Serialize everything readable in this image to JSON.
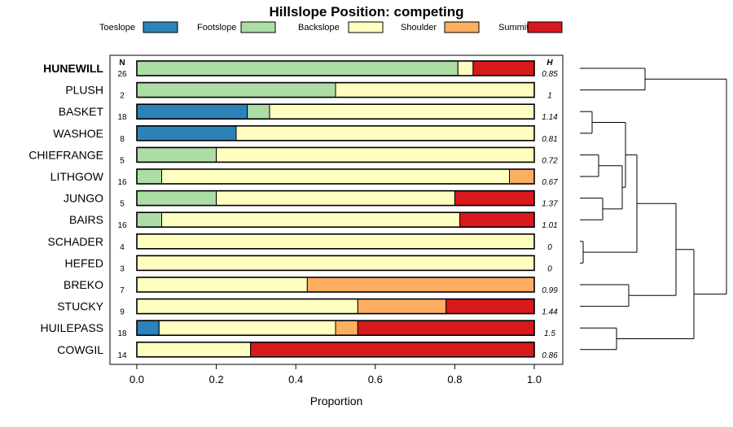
{
  "chart_data": {
    "type": "bar",
    "orientation": "horizontal",
    "stacked": true,
    "title": "Hillslope Position: competing",
    "xlabel": "Proportion",
    "ylabel": "",
    "xlim": [
      0,
      1
    ],
    "xticks": [
      "0.0",
      "0.2",
      "0.4",
      "0.6",
      "0.8",
      "1.0"
    ],
    "n_header": "N",
    "h_header": "H",
    "legend": [
      {
        "name": "Toeslope",
        "color": "#2b83ba"
      },
      {
        "name": "Footslope",
        "color": "#abdda4"
      },
      {
        "name": "Backslope",
        "color": "#ffffbf"
      },
      {
        "name": "Shoulder",
        "color": "#fdae61"
      },
      {
        "name": "Summit",
        "color": "#d7191c"
      }
    ],
    "rows": [
      {
        "label": "HUNEWILL",
        "bold": true,
        "n": "26",
        "h": "0.85",
        "values": [
          0,
          0.808,
          0.038,
          0,
          0.154
        ]
      },
      {
        "label": "PLUSH",
        "bold": false,
        "n": "2",
        "h": "1",
        "values": [
          0,
          0.5,
          0.5,
          0,
          0
        ]
      },
      {
        "label": "BASKET",
        "bold": false,
        "n": "18",
        "h": "1.14",
        "values": [
          0.278,
          0.056,
          0.666,
          0,
          0
        ]
      },
      {
        "label": "WASHOE",
        "bold": false,
        "n": "8",
        "h": "0.81",
        "values": [
          0.25,
          0,
          0.75,
          0,
          0
        ]
      },
      {
        "label": "CHIEFRANGE",
        "bold": false,
        "n": "5",
        "h": "0.72",
        "values": [
          0,
          0.2,
          0.8,
          0,
          0
        ]
      },
      {
        "label": "LITHGOW",
        "bold": false,
        "n": "16",
        "h": "0.67",
        "values": [
          0,
          0.0625,
          0.875,
          0.0625,
          0
        ]
      },
      {
        "label": "JUNGO",
        "bold": false,
        "n": "5",
        "h": "1.37",
        "values": [
          0,
          0.2,
          0.6,
          0,
          0.2
        ]
      },
      {
        "label": "BAIRS",
        "bold": false,
        "n": "16",
        "h": "1.01",
        "values": [
          0,
          0.0625,
          0.75,
          0,
          0.1875
        ]
      },
      {
        "label": "SCHADER",
        "bold": false,
        "n": "4",
        "h": "0",
        "values": [
          0,
          0,
          1,
          0,
          0
        ]
      },
      {
        "label": "HEFED",
        "bold": false,
        "n": "3",
        "h": "0",
        "values": [
          0,
          0,
          1,
          0,
          0
        ]
      },
      {
        "label": "BREKO",
        "bold": false,
        "n": "7",
        "h": "0.99",
        "values": [
          0,
          0,
          0.429,
          0.571,
          0
        ]
      },
      {
        "label": "STUCKY",
        "bold": false,
        "n": "9",
        "h": "1.44",
        "values": [
          0,
          0,
          0.556,
          0.222,
          0.222
        ]
      },
      {
        "label": "HUILEPASS",
        "bold": false,
        "n": "18",
        "h": "1.5",
        "values": [
          0.056,
          0,
          0.444,
          0.056,
          0.444
        ]
      },
      {
        "label": "COWGIL",
        "bold": false,
        "n": "14",
        "h": "0.86",
        "values": [
          0,
          0,
          0.286,
          0,
          0.714
        ]
      }
    ],
    "dendrogram": "hierarchical clustering of rows, drawn to the right"
  }
}
